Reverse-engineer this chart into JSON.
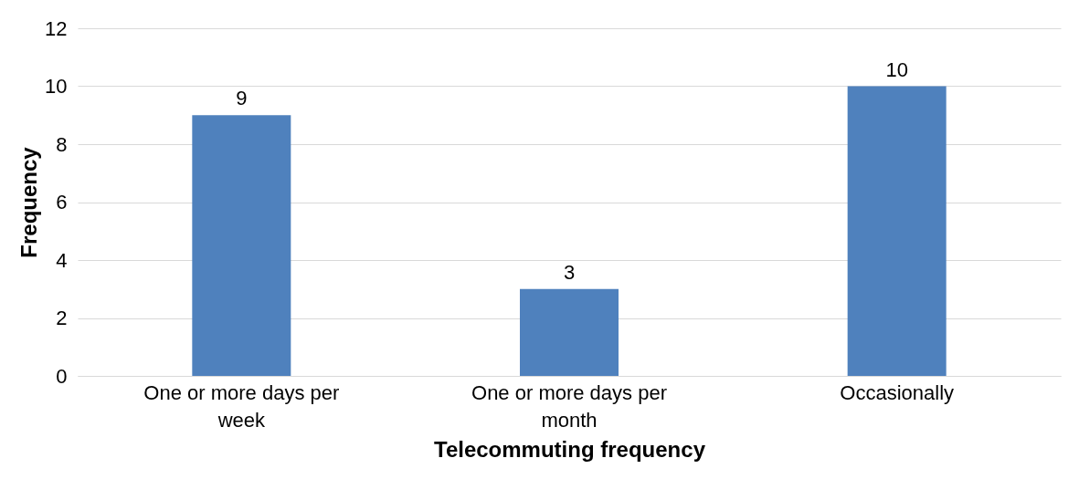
{
  "chart_data": {
    "type": "bar",
    "xlabel": "Telecommuting frequency",
    "ylabel": "Frequency",
    "categories": [
      "One or more days per week",
      "One or more days per month",
      "Occasionally"
    ],
    "values": [
      9,
      3,
      10
    ],
    "color": "#4f81bd",
    "ylim": [
      0,
      12
    ],
    "yticks": [
      0,
      2,
      4,
      6,
      8,
      10,
      12
    ],
    "grid": "y",
    "data_labels": true
  }
}
